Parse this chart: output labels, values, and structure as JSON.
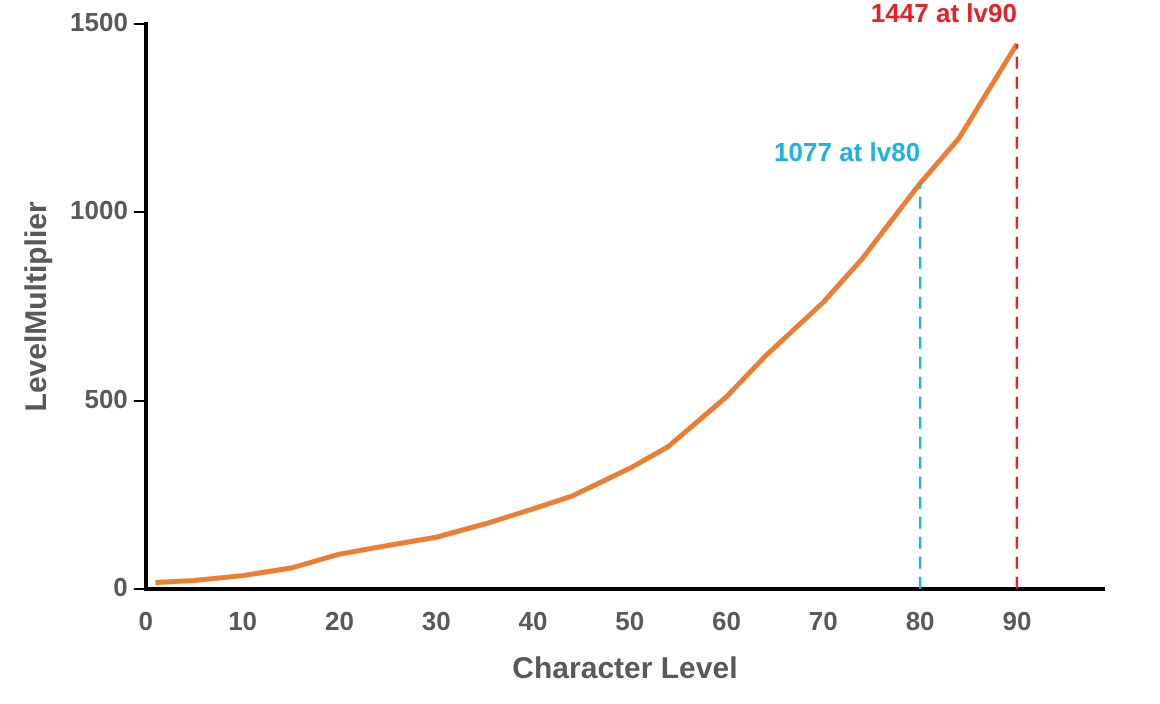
{
  "chart_data": {
    "type": "line",
    "xlabel": "Character Level",
    "ylabel": "LevelMultiplier",
    "x": [
      1,
      5,
      10,
      15,
      20,
      25,
      30,
      35,
      40,
      44,
      50,
      54,
      60,
      64,
      70,
      74,
      80,
      84,
      90
    ],
    "series": [
      {
        "color": "#ed7d31",
        "values": [
          17,
          22,
          35,
          55,
          92,
          115,
          137,
          172,
          212,
          246,
          320,
          378,
          510,
          618,
          761,
          876,
          1077,
          1196,
          1447
        ]
      }
    ],
    "xlim": [
      0,
      99
    ],
    "xticks": [
      0,
      10,
      20,
      30,
      40,
      50,
      60,
      70,
      80,
      90
    ],
    "ylim": [
      0,
      1500
    ],
    "yticks": [
      0,
      500,
      1000,
      1500
    ],
    "grid": false,
    "legend": false,
    "marker": "none",
    "line_style": "solid",
    "ref_lines": [
      {
        "axis": "x",
        "value": 80,
        "label": "1077 at lv80",
        "color": "#1fb3e0",
        "line_style": "dashed"
      },
      {
        "axis": "x",
        "value": 90,
        "label": "1447 at lv90",
        "color": "#e8202a",
        "line_style": "dashed"
      }
    ]
  }
}
